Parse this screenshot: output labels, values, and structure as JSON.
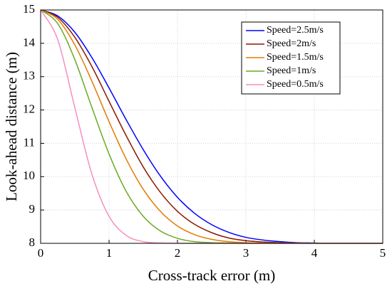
{
  "chart_data": {
    "type": "line",
    "xlabel": "Cross-track error (m)",
    "ylabel": "Look-ahead distance (m)",
    "x": [
      0,
      0.25,
      0.5,
      0.75,
      1,
      1.25,
      1.5,
      1.75,
      2,
      2.25,
      2.5,
      2.75,
      3,
      3.25,
      3.5,
      3.75,
      4,
      4.25,
      4.5,
      4.75,
      5
    ],
    "series": [
      {
        "name": "Speed=2.5m/s",
        "color": "#0000ff",
        "values": [
          15,
          14.82,
          14.33,
          13.57,
          12.66,
          11.71,
          10.81,
          10.02,
          9.38,
          8.9,
          8.56,
          8.33,
          8.18,
          8.1,
          8.05,
          8.02,
          8.01,
          8,
          8,
          8,
          8
        ]
      },
      {
        "name": "Speed=2m/s",
        "color": "#8b1a00",
        "values": [
          15,
          14.78,
          14.18,
          13.3,
          12.26,
          11.23,
          10.29,
          9.53,
          8.96,
          8.57,
          8.32,
          8.16,
          8.08,
          8.04,
          8.02,
          8.01,
          8,
          8,
          8,
          8,
          8
        ]
      },
      {
        "name": "Speed=1.5m/s",
        "color": "#e07b00",
        "values": [
          15,
          14.72,
          13.95,
          12.86,
          11.65,
          10.53,
          9.62,
          8.96,
          8.52,
          8.26,
          8.12,
          8.05,
          8.02,
          8.01,
          8,
          8,
          8,
          8,
          8,
          8,
          8
        ]
      },
      {
        "name": "Speed=1m/s",
        "color": "#6aaa22",
        "values": [
          15,
          14.59,
          13.51,
          12.07,
          10.68,
          9.56,
          8.81,
          8.37,
          8.15,
          8.05,
          8.02,
          8.01,
          8,
          8,
          8,
          8,
          8,
          8,
          8,
          8,
          8
        ]
      },
      {
        "name": "Speed=0.5m/s",
        "color": "#f58fc0",
        "values": [
          15,
          14.11,
          12.07,
          10.07,
          8.81,
          8.24,
          8.05,
          8.01,
          8,
          8,
          8,
          8,
          8,
          8,
          8,
          8,
          8,
          8,
          8,
          8,
          8
        ]
      }
    ],
    "xlim": [
      0,
      5
    ],
    "xticks": [
      0,
      1,
      2,
      3,
      4,
      5
    ],
    "ylim": [
      8,
      15
    ],
    "yticks": [
      8,
      9,
      10,
      11,
      12,
      13,
      14,
      15
    ],
    "grid": true,
    "legend": "upper right"
  }
}
